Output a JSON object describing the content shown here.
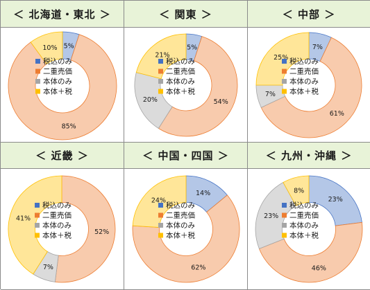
{
  "legend": [
    {
      "label": "税込のみ",
      "color": "#4472c4"
    },
    {
      "label": "二重売価",
      "color": "#ed7d31"
    },
    {
      "label": "本体のみ",
      "color": "#a5a5a5"
    },
    {
      "label": "本体＋税",
      "color": "#ffc000"
    }
  ],
  "chart_data": [
    {
      "type": "pie",
      "title": "＜ 北海道・東北 ＞",
      "categories": [
        "税込のみ",
        "二重売価",
        "本体のみ",
        "本体＋税"
      ],
      "values": [
        5,
        85,
        0,
        10
      ],
      "labels": [
        "5%",
        "85%",
        "",
        "10%"
      ]
    },
    {
      "type": "pie",
      "title": "＜ 関東 ＞",
      "categories": [
        "税込のみ",
        "二重売価",
        "本体のみ",
        "本体＋税"
      ],
      "values": [
        5,
        54,
        20,
        21
      ],
      "labels": [
        "5%",
        "54%",
        "20%",
        "21%"
      ]
    },
    {
      "type": "pie",
      "title": "＜ 中部 ＞",
      "categories": [
        "税込のみ",
        "二重売価",
        "本体のみ",
        "本体＋税"
      ],
      "values": [
        7,
        61,
        7,
        25
      ],
      "labels": [
        "7%",
        "61%",
        "7%",
        "25%"
      ]
    },
    {
      "type": "pie",
      "title": "＜ 近畿 ＞",
      "categories": [
        "税込のみ",
        "二重売価",
        "本体のみ",
        "本体＋税"
      ],
      "values": [
        0,
        52,
        7,
        41
      ],
      "labels": [
        "",
        "52%",
        "7%",
        "41%"
      ]
    },
    {
      "type": "pie",
      "title": "＜ 中国・四国 ＞",
      "categories": [
        "税込のみ",
        "二重売価",
        "本体のみ",
        "本体＋税"
      ],
      "values": [
        14,
        62,
        0,
        24
      ],
      "labels": [
        "14%",
        "62%",
        "",
        "24%"
      ]
    },
    {
      "type": "pie",
      "title": "＜ 九州・沖縄 ＞",
      "categories": [
        "税込のみ",
        "二重売価",
        "本体のみ",
        "本体＋税"
      ],
      "values": [
        23,
        46,
        23,
        8
      ],
      "labels": [
        "23%",
        "46%",
        "23%",
        "8%"
      ]
    }
  ]
}
